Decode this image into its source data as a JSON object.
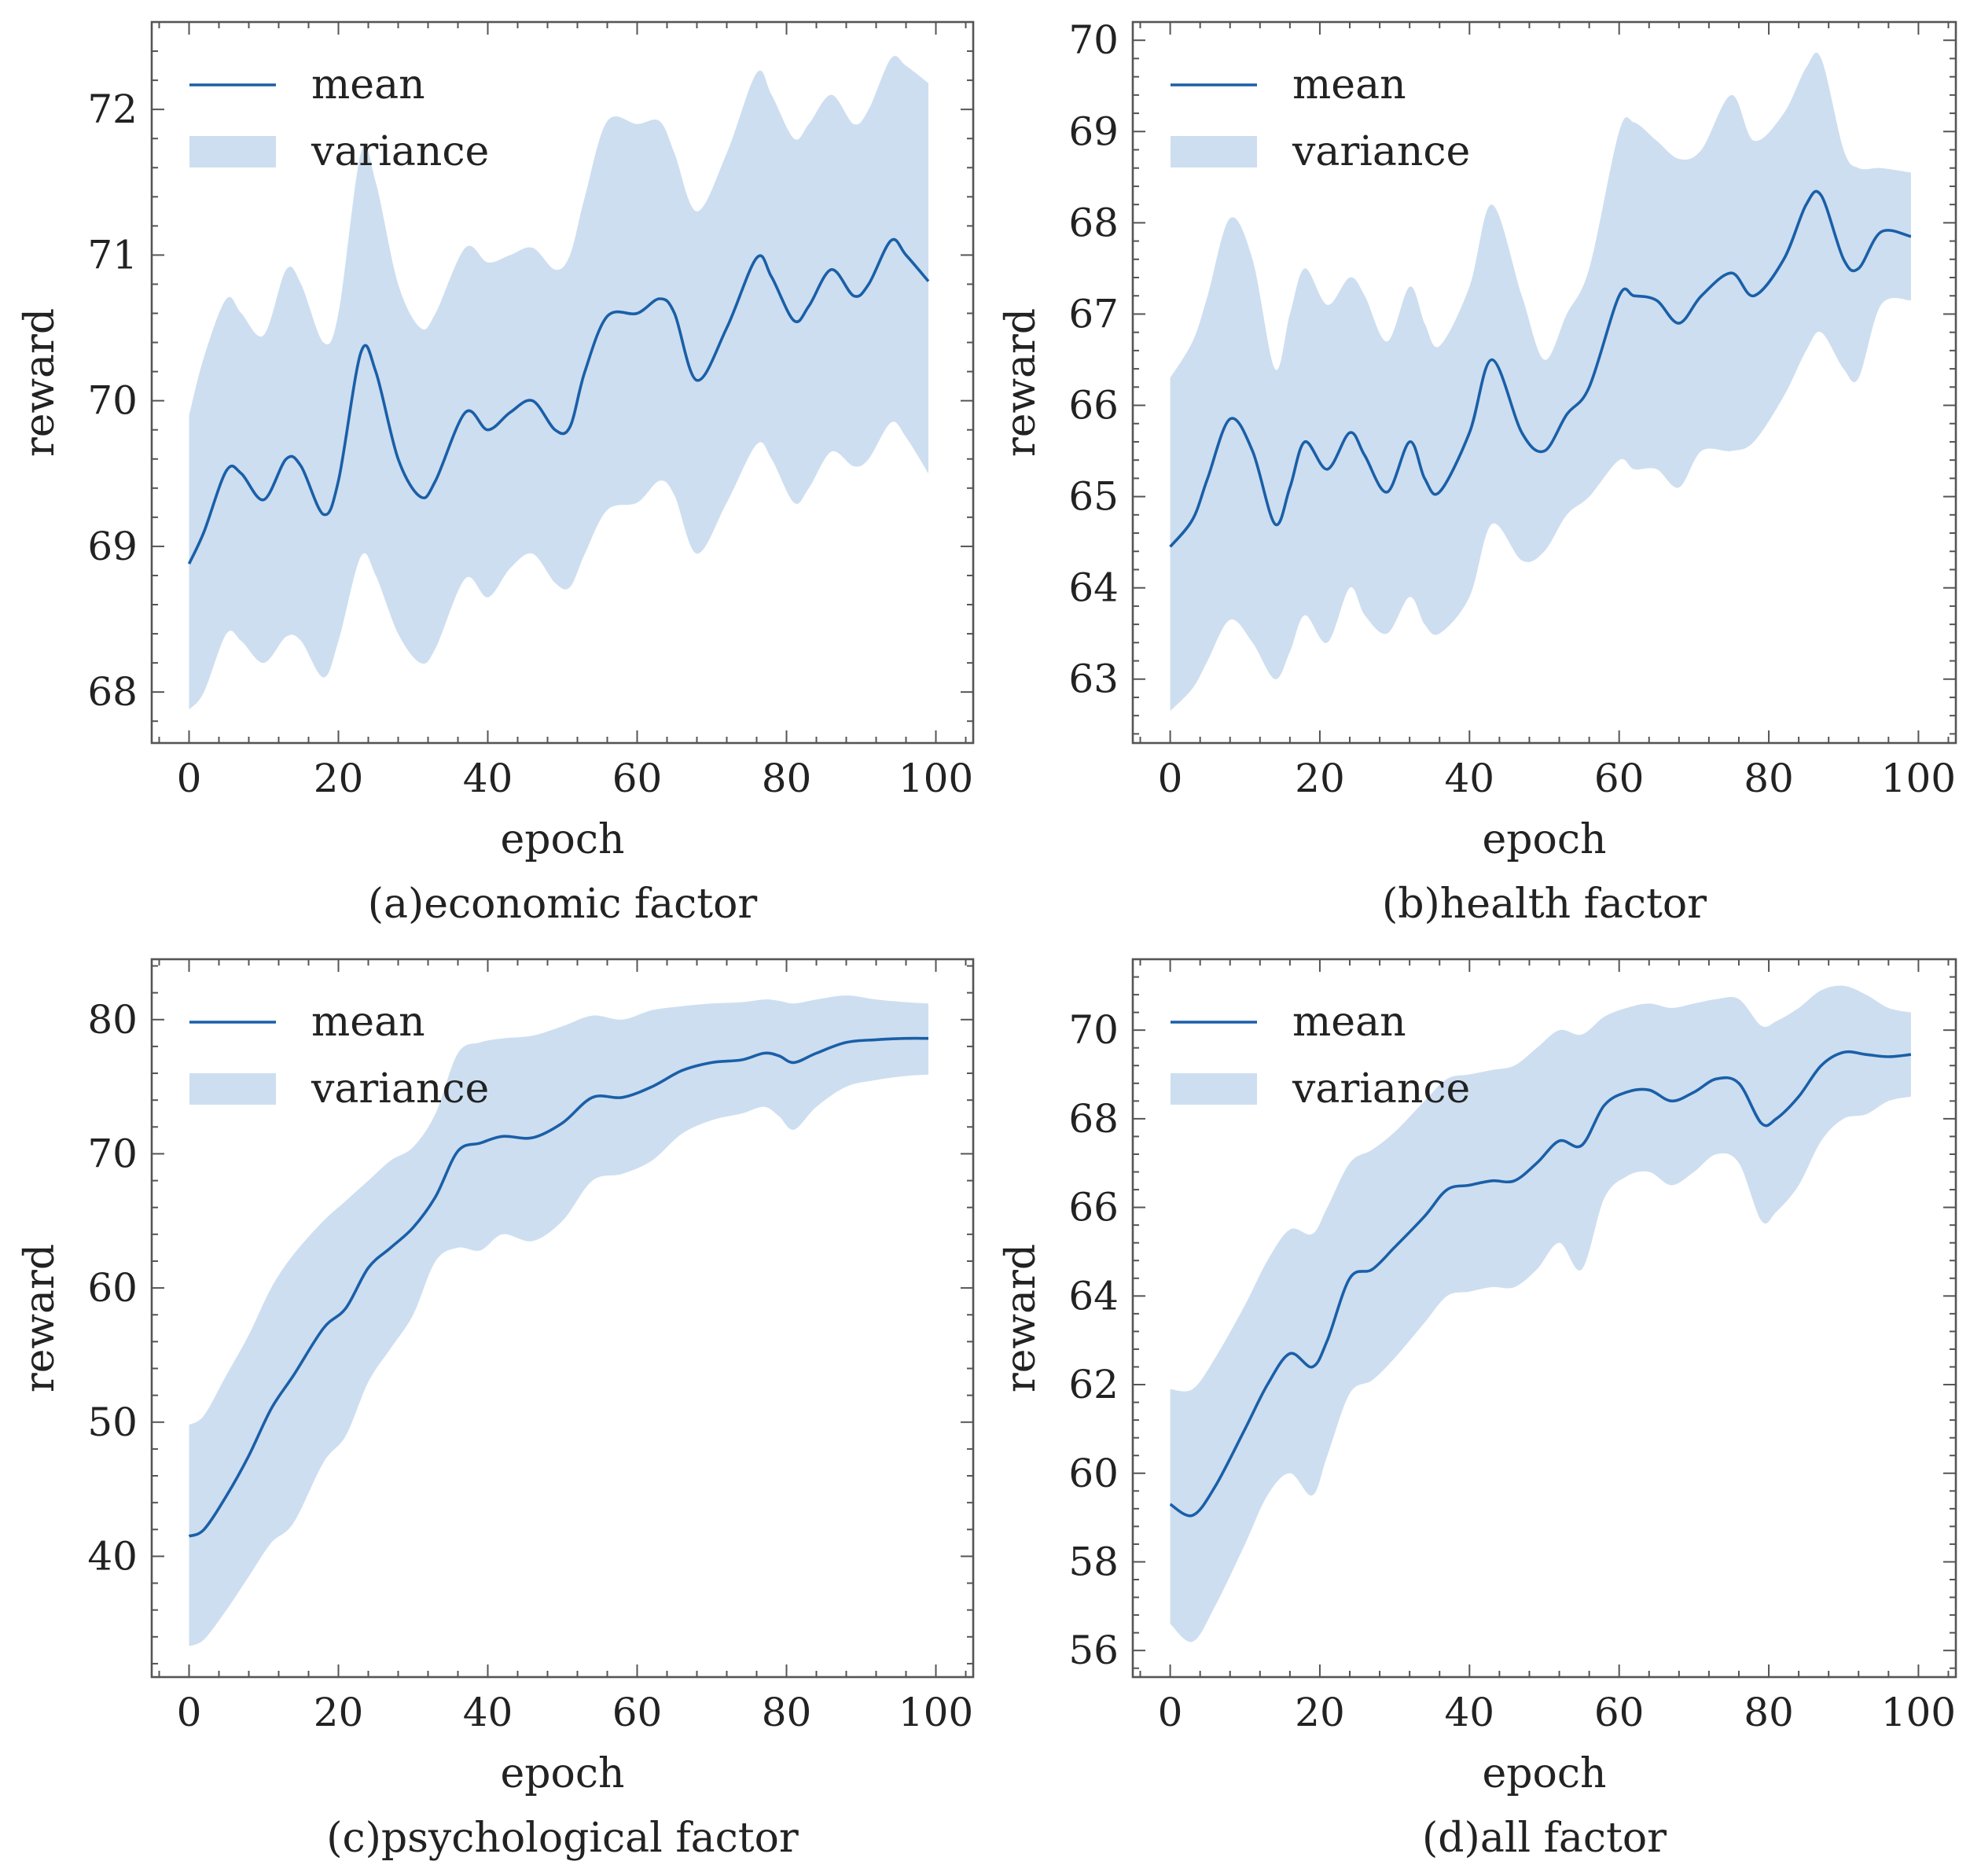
{
  "colors": {
    "line": "#1a5fa8",
    "band": "#cddef0",
    "axis": "#555555",
    "text": "#222222"
  },
  "chart_data": [
    {
      "type": "line",
      "caption": "(a)economic factor",
      "xlabel": "epoch",
      "ylabel": "reward",
      "xlim": [
        -5,
        105
      ],
      "ylim": [
        67.65,
        72.6
      ],
      "xticks": [
        0,
        20,
        40,
        60,
        80,
        100
      ],
      "yticks": [
        68,
        69,
        70,
        71,
        72
      ],
      "legend": {
        "position": "top-left",
        "entries": [
          "mean",
          "variance"
        ]
      },
      "series": [
        {
          "name": "mean",
          "x": [
            0,
            2,
            5,
            7,
            10,
            13,
            15,
            18,
            20,
            23,
            25,
            28,
            31,
            33,
            37,
            40,
            43,
            46,
            49,
            51,
            53,
            56,
            60,
            63,
            65,
            68,
            72,
            76,
            78,
            81,
            83,
            86,
            89,
            91,
            94,
            96,
            99
          ],
          "y": [
            68.88,
            69.1,
            69.52,
            69.5,
            69.32,
            69.6,
            69.55,
            69.22,
            69.45,
            70.33,
            70.2,
            69.6,
            69.34,
            69.45,
            69.92,
            69.8,
            69.92,
            70.0,
            69.8,
            69.82,
            70.2,
            70.58,
            70.6,
            70.7,
            70.6,
            70.14,
            70.5,
            70.98,
            70.85,
            70.55,
            70.65,
            70.9,
            70.72,
            70.8,
            71.1,
            71.0,
            70.82
          ]
        },
        {
          "name": "variance",
          "x": [
            0,
            2,
            5,
            7,
            10,
            13,
            15,
            18,
            20,
            23,
            25,
            28,
            31,
            33,
            37,
            40,
            43,
            46,
            49,
            51,
            53,
            56,
            60,
            63,
            65,
            68,
            72,
            76,
            78,
            81,
            83,
            86,
            89,
            91,
            94,
            96,
            99
          ],
          "upper": [
            69.9,
            70.3,
            70.7,
            70.6,
            70.45,
            70.9,
            70.8,
            70.4,
            70.6,
            71.7,
            71.5,
            70.8,
            70.5,
            70.6,
            71.05,
            70.95,
            71.0,
            71.05,
            70.9,
            71.0,
            71.4,
            71.92,
            71.9,
            71.92,
            71.7,
            71.3,
            71.7,
            72.25,
            72.1,
            71.8,
            71.9,
            72.1,
            71.9,
            72.0,
            72.35,
            72.3,
            72.18
          ],
          "lower": [
            67.88,
            68.0,
            68.4,
            68.35,
            68.2,
            68.38,
            68.35,
            68.1,
            68.35,
            68.93,
            68.8,
            68.4,
            68.2,
            68.3,
            68.78,
            68.65,
            68.85,
            68.95,
            68.75,
            68.72,
            68.95,
            69.25,
            69.3,
            69.45,
            69.35,
            68.95,
            69.3,
            69.7,
            69.6,
            69.3,
            69.4,
            69.65,
            69.55,
            69.6,
            69.85,
            69.75,
            69.5
          ]
        }
      ]
    },
    {
      "type": "line",
      "caption": "(b)health factor",
      "xlabel": "epoch",
      "ylabel": "reward",
      "xlim": [
        -5,
        105
      ],
      "ylim": [
        62.3,
        70.2
      ],
      "xticks": [
        0,
        20,
        40,
        60,
        80,
        100
      ],
      "yticks": [
        63,
        64,
        65,
        66,
        67,
        68,
        69,
        70
      ],
      "legend": {
        "position": "top-left",
        "entries": [
          "mean",
          "variance"
        ]
      },
      "series": [
        {
          "name": "mean",
          "x": [
            0,
            3,
            5,
            8,
            11,
            14,
            16,
            18,
            21,
            24,
            26,
            29,
            32,
            34,
            36,
            40,
            43,
            47,
            50,
            53,
            56,
            60,
            62,
            65,
            68,
            71,
            75,
            78,
            82,
            85,
            87,
            90,
            92,
            95,
            99
          ],
          "y": [
            64.45,
            64.75,
            65.2,
            65.85,
            65.5,
            64.7,
            65.1,
            65.6,
            65.3,
            65.7,
            65.45,
            65.05,
            65.6,
            65.2,
            65.05,
            65.7,
            66.5,
            65.7,
            65.5,
            65.9,
            66.2,
            67.2,
            67.2,
            67.15,
            66.9,
            67.2,
            67.45,
            67.2,
            67.6,
            68.2,
            68.3,
            67.6,
            67.5,
            67.9,
            67.85
          ]
        },
        {
          "name": "variance",
          "x": [
            0,
            3,
            5,
            8,
            11,
            14,
            16,
            18,
            21,
            24,
            26,
            29,
            32,
            34,
            36,
            40,
            43,
            47,
            50,
            53,
            56,
            60,
            62,
            65,
            68,
            71,
            75,
            78,
            82,
            85,
            87,
            90,
            92,
            95,
            99
          ],
          "upper": [
            66.3,
            66.7,
            67.2,
            68.05,
            67.6,
            66.4,
            67.0,
            67.5,
            67.1,
            67.4,
            67.2,
            66.7,
            67.3,
            66.9,
            66.65,
            67.3,
            68.2,
            67.2,
            66.5,
            67.0,
            67.5,
            69.0,
            69.1,
            68.9,
            68.7,
            68.8,
            69.4,
            68.9,
            69.2,
            69.7,
            69.8,
            68.8,
            68.6,
            68.6,
            68.55
          ],
          "lower": [
            62.65,
            62.9,
            63.2,
            63.65,
            63.4,
            63.0,
            63.3,
            63.7,
            63.4,
            64.0,
            63.7,
            63.5,
            63.9,
            63.6,
            63.5,
            63.9,
            64.7,
            64.3,
            64.4,
            64.8,
            65.0,
            65.4,
            65.3,
            65.3,
            65.1,
            65.5,
            65.5,
            65.6,
            66.1,
            66.6,
            66.8,
            66.4,
            66.3,
            67.1,
            67.15
          ]
        }
      ]
    },
    {
      "type": "line",
      "caption": "(c)psychological factor",
      "xlabel": "epoch",
      "ylabel": "reward",
      "xlim": [
        -5,
        105
      ],
      "ylim": [
        31,
        84.5
      ],
      "xticks": [
        0,
        20,
        40,
        60,
        80,
        100
      ],
      "yticks": [
        40,
        50,
        60,
        70,
        80
      ],
      "legend": {
        "position": "top-left",
        "entries": [
          "mean",
          "variance"
        ]
      },
      "series": [
        {
          "name": "mean",
          "x": [
            0,
            2,
            5,
            8,
            11,
            14,
            18,
            21,
            24,
            27,
            30,
            33,
            36,
            39,
            42,
            46,
            50,
            54,
            58,
            62,
            66,
            70,
            74,
            77,
            79,
            81,
            84,
            88,
            92,
            96,
            99
          ],
          "y": [
            41.5,
            42.0,
            44.5,
            47.5,
            51.0,
            53.5,
            57.0,
            58.5,
            61.5,
            63.0,
            64.5,
            66.8,
            70.2,
            70.8,
            71.3,
            71.2,
            72.3,
            74.2,
            74.2,
            75.0,
            76.2,
            76.8,
            77.0,
            77.5,
            77.3,
            76.8,
            77.5,
            78.3,
            78.5,
            78.6,
            78.6
          ]
        },
        {
          "name": "variance",
          "x": [
            0,
            2,
            5,
            8,
            11,
            14,
            18,
            21,
            24,
            27,
            30,
            33,
            36,
            39,
            42,
            46,
            50,
            54,
            58,
            62,
            66,
            70,
            74,
            77,
            79,
            81,
            84,
            88,
            92,
            96,
            99
          ],
          "upper": [
            49.8,
            50.5,
            53.5,
            56.5,
            60.0,
            62.5,
            65.0,
            66.5,
            68.0,
            69.5,
            70.5,
            73.0,
            77.5,
            78.3,
            78.6,
            78.8,
            79.5,
            80.3,
            80.0,
            80.7,
            81.0,
            81.2,
            81.3,
            81.5,
            81.4,
            81.2,
            81.5,
            81.8,
            81.5,
            81.3,
            81.2
          ],
          "lower": [
            33.3,
            33.8,
            36.0,
            38.5,
            41.0,
            42.5,
            47.0,
            49.0,
            53.0,
            55.5,
            58.0,
            62.0,
            63.0,
            62.8,
            64.0,
            63.5,
            65.0,
            68.0,
            68.5,
            69.5,
            71.5,
            72.5,
            73.0,
            73.5,
            72.8,
            71.8,
            73.5,
            75.0,
            75.5,
            75.8,
            75.9
          ]
        }
      ]
    },
    {
      "type": "line",
      "caption": "(d)all factor",
      "xlabel": "epoch",
      "ylabel": "reward",
      "xlim": [
        -5,
        105
      ],
      "ylim": [
        55.4,
        71.6
      ],
      "xticks": [
        0,
        20,
        40,
        60,
        80,
        100
      ],
      "yticks": [
        56,
        58,
        60,
        62,
        64,
        66,
        68,
        70
      ],
      "legend": {
        "position": "top-left",
        "entries": [
          "mean",
          "variance"
        ]
      },
      "series": [
        {
          "name": "mean",
          "x": [
            0,
            3,
            6,
            10,
            13,
            16,
            19,
            21,
            24,
            27,
            30,
            34,
            37,
            40,
            43,
            46,
            49,
            52,
            55,
            58,
            61,
            64,
            67,
            70,
            73,
            76,
            79,
            81,
            84,
            87,
            90,
            93,
            96,
            99
          ],
          "y": [
            59.3,
            59.05,
            59.7,
            61.0,
            62.0,
            62.7,
            62.4,
            63.0,
            64.4,
            64.6,
            65.1,
            65.8,
            66.4,
            66.5,
            66.6,
            66.6,
            67.0,
            67.5,
            67.4,
            68.3,
            68.6,
            68.65,
            68.4,
            68.6,
            68.9,
            68.8,
            67.9,
            68.0,
            68.5,
            69.2,
            69.5,
            69.45,
            69.4,
            69.45
          ]
        },
        {
          "name": "variance",
          "x": [
            0,
            3,
            6,
            10,
            13,
            16,
            19,
            21,
            24,
            27,
            30,
            34,
            37,
            40,
            43,
            46,
            49,
            52,
            55,
            58,
            61,
            64,
            67,
            70,
            73,
            76,
            79,
            81,
            84,
            87,
            90,
            93,
            96,
            99
          ],
          "upper": [
            61.9,
            61.9,
            62.6,
            63.8,
            64.8,
            65.5,
            65.4,
            66.0,
            67.0,
            67.3,
            67.7,
            68.4,
            68.9,
            69.0,
            69.1,
            69.2,
            69.6,
            70.0,
            69.9,
            70.3,
            70.5,
            70.6,
            70.5,
            70.6,
            70.7,
            70.7,
            70.1,
            70.2,
            70.5,
            70.9,
            71.0,
            70.8,
            70.5,
            70.4
          ],
          "lower": [
            56.6,
            56.2,
            57.0,
            58.4,
            59.5,
            60.0,
            59.5,
            60.4,
            61.8,
            62.1,
            62.6,
            63.4,
            64.0,
            64.1,
            64.2,
            64.2,
            64.6,
            65.2,
            64.6,
            66.2,
            66.7,
            66.8,
            66.5,
            66.8,
            67.2,
            67.0,
            65.7,
            65.9,
            66.5,
            67.5,
            68.0,
            68.1,
            68.4,
            68.5
          ]
        }
      ]
    }
  ]
}
